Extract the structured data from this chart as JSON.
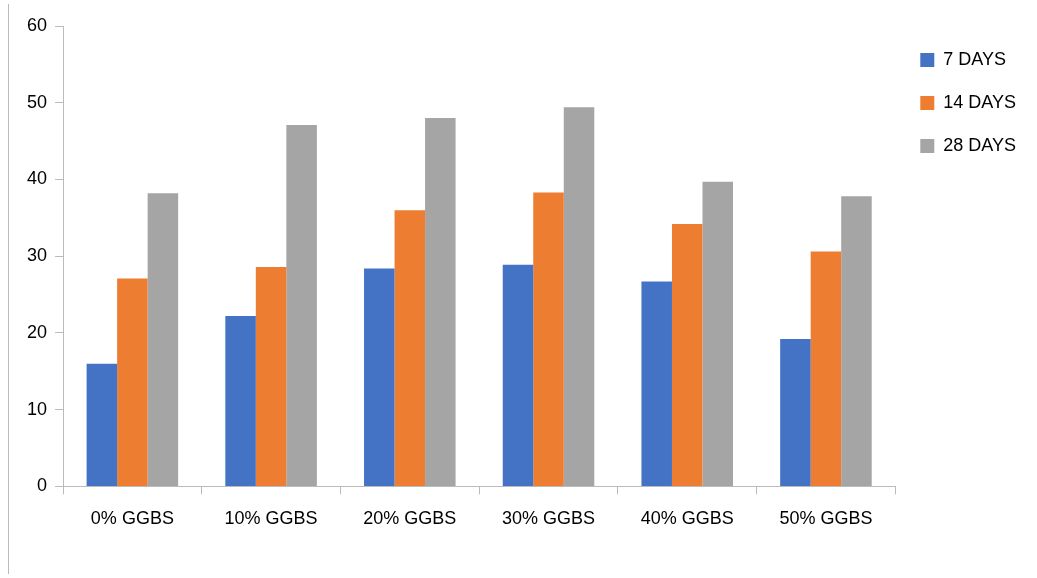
{
  "chart_data": {
    "type": "bar",
    "categories": [
      "0% GGBS",
      "10% GGBS",
      "20% GGBS",
      "30% GGBS",
      "40% GGBS",
      "50% GGBS"
    ],
    "series": [
      {
        "name": "7 DAYS",
        "color": "#4472c4",
        "values": [
          16.0,
          22.2,
          28.4,
          28.9,
          26.7,
          19.2
        ]
      },
      {
        "name": "14 DAYS",
        "color": "#ed7d31",
        "values": [
          27.1,
          28.6,
          36.0,
          38.3,
          34.2,
          30.6
        ]
      },
      {
        "name": "28 DAYS",
        "color": "#a5a5a5",
        "values": [
          38.2,
          47.1,
          48.0,
          49.4,
          39.7,
          37.8
        ]
      }
    ],
    "ylim": [
      0,
      60
    ],
    "yticks": [
      0,
      10,
      20,
      30,
      40,
      50,
      60
    ],
    "grid": false,
    "legend": "top right"
  }
}
